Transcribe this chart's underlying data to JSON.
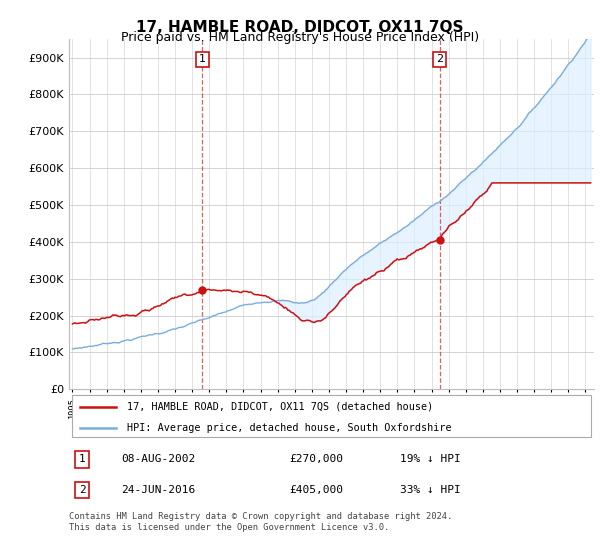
{
  "title": "17, HAMBLE ROAD, DIDCOT, OX11 7QS",
  "subtitle": "Price paid vs. HM Land Registry's House Price Index (HPI)",
  "ytick_values": [
    0,
    100000,
    200000,
    300000,
    400000,
    500000,
    600000,
    700000,
    800000,
    900000
  ],
  "ylim": [
    0,
    950000
  ],
  "xlim_start": 1994.8,
  "xlim_end": 2025.5,
  "hpi_color": "#7aaddb",
  "hpi_fill_color": "#ddeeff",
  "price_color": "#cc1111",
  "sale1_year": 2002.6,
  "sale1_price": 270000,
  "sale2_year": 2016.47,
  "sale2_price": 405000,
  "legend_label1": "17, HAMBLE ROAD, DIDCOT, OX11 7QS (detached house)",
  "legend_label2": "HPI: Average price, detached house, South Oxfordshire",
  "table_row1": [
    "1",
    "08-AUG-2002",
    "£270,000",
    "19% ↓ HPI"
  ],
  "table_row2": [
    "2",
    "24-JUN-2016",
    "£405,000",
    "33% ↓ HPI"
  ],
  "footer": "Contains HM Land Registry data © Crown copyright and database right 2024.\nThis data is licensed under the Open Government Licence v3.0.",
  "background_color": "#ffffff",
  "grid_color": "#cccccc",
  "title_fontsize": 11,
  "subtitle_fontsize": 9,
  "tick_fontsize": 8
}
